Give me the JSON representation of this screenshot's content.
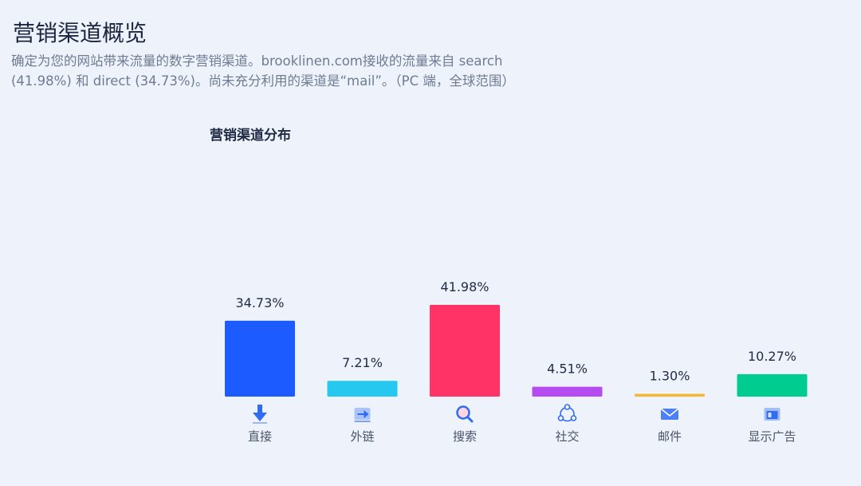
{
  "header": {
    "title": "营销渠道概览",
    "description": "确定为您的网站带来流量的数字营销渠道。brooklinen.com接收的流量来自 search (41.98%) 和 direct (34.73%)。尚未充分利用的渠道是“mail”。（PC 端，全球范围）"
  },
  "chart_data": {
    "type": "bar",
    "title": "营销渠道分布",
    "categories": [
      "直接",
      "外链",
      "搜索",
      "社交",
      "邮件",
      "显示广告"
    ],
    "values": [
      34.73,
      7.21,
      41.98,
      4.51,
      1.3,
      10.27
    ],
    "value_labels": [
      "34.73%",
      "7.21%",
      "41.98%",
      "4.51%",
      "1.30%",
      "10.27%"
    ],
    "colors": [
      "#1b5bff",
      "#26c8f0",
      "#ff3366",
      "#b44cf0",
      "#f5b731",
      "#00cc90"
    ],
    "icons": [
      "direct-arrow-icon",
      "referral-link-icon",
      "search-magnifier-icon",
      "social-share-icon",
      "mail-envelope-icon",
      "display-ad-icon"
    ],
    "ylim": [
      0,
      41.98
    ],
    "grid": false,
    "legend": "none"
  }
}
